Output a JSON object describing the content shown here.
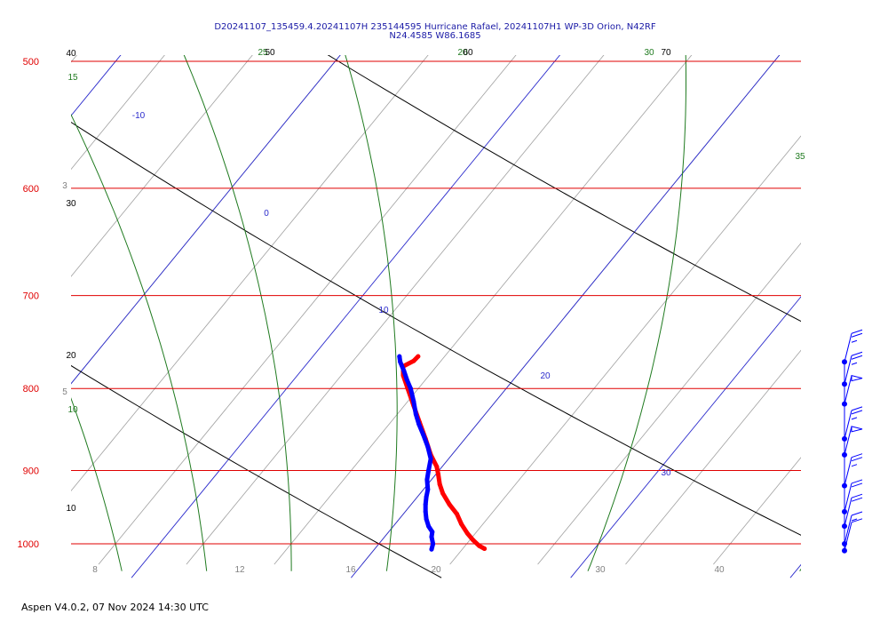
{
  "header": {
    "line1": "D20241107_135459.4.20241107H 235144595 Hurricane Rafael, 20241107H1 WP-3D Orion, N42RF",
    "line2": "N24.4585 W86.1685"
  },
  "footer": {
    "text": "Aspen V4.0.2, 07 Nov 2024  14:30 UTC"
  },
  "colors": {
    "isobar": "#e00000",
    "isotherm": "#2a2acc",
    "dry_adiabat": "#000000",
    "moist_adiabat": "#1f7a1f",
    "mixing_ratio": "#a0a0a0",
    "temperature_trace": "#ff0000",
    "dewpoint_trace": "#0000ff",
    "wind_barbs": "#0000ff"
  },
  "chart_data": {
    "type": "line",
    "title": "",
    "pressure_axis": {
      "scale": "log",
      "range_hpa": [
        1030,
        500
      ]
    },
    "temperature_axis": {
      "range_c": [
        4,
        45
      ]
    },
    "isobars": [
      {
        "label": "500",
        "p": 500
      },
      {
        "label": "600",
        "p": 600
      },
      {
        "label": "700",
        "p": 700
      },
      {
        "label": "800",
        "p": 800
      },
      {
        "label": "900",
        "p": 900
      },
      {
        "label": "1000",
        "p": 1000
      }
    ],
    "bottom_labels": [
      "8",
      "12",
      "16",
      "20",
      "30",
      "40"
    ],
    "isotherm_labels": [
      "-10",
      "0",
      "10",
      "20",
      "30"
    ],
    "dry_adiabat_labels": [
      "40",
      "30",
      "20",
      "10"
    ],
    "moist_adiabat_labels": [
      "15",
      "10",
      "25",
      "30",
      "35",
      "20"
    ],
    "top_labels": [
      "50",
      "60",
      "70"
    ],
    "mixing_ratio_labels": [
      "3",
      "5"
    ],
    "series": [
      {
        "kind": "temperature",
        "points": [
          {
            "p": 1007,
            "t": 26.5
          },
          {
            "p": 1003,
            "t": 25.8
          },
          {
            "p": 995,
            "t": 25.0
          },
          {
            "p": 985,
            "t": 24.2
          },
          {
            "p": 972,
            "t": 23.4
          },
          {
            "p": 958,
            "t": 22.8
          },
          {
            "p": 945,
            "t": 21.8
          },
          {
            "p": 930,
            "t": 20.9
          },
          {
            "p": 918,
            "t": 20.5
          },
          {
            "p": 905,
            "t": 20.3
          },
          {
            "p": 895,
            "t": 20.1
          },
          {
            "p": 880,
            "t": 19.3
          },
          {
            "p": 860,
            "t": 18.6
          },
          {
            "p": 840,
            "t": 17.8
          },
          {
            "p": 820,
            "t": 17.0
          },
          {
            "p": 800,
            "t": 16.2
          },
          {
            "p": 785,
            "t": 15.6
          },
          {
            "p": 775,
            "t": 15.6
          },
          {
            "p": 769,
            "t": 17.0
          },
          {
            "p": 764,
            "t": 17.6
          }
        ]
      },
      {
        "kind": "dewpoint",
        "points": [
          {
            "p": 1008,
            "t": 19.4
          },
          {
            "p": 1000,
            "t": 19.6
          },
          {
            "p": 990,
            "t": 19.4
          },
          {
            "p": 983,
            "t": 19.5
          },
          {
            "p": 975,
            "t": 19.0
          },
          {
            "p": 965,
            "t": 18.7
          },
          {
            "p": 955,
            "t": 18.6
          },
          {
            "p": 945,
            "t": 18.6
          },
          {
            "p": 935,
            "t": 18.7
          },
          {
            "p": 925,
            "t": 18.9
          },
          {
            "p": 912,
            "t": 18.8
          },
          {
            "p": 900,
            "t": 19.0
          },
          {
            "p": 885,
            "t": 19.3
          },
          {
            "p": 870,
            "t": 18.9
          },
          {
            "p": 855,
            "t": 18.3
          },
          {
            "p": 842,
            "t": 17.7
          },
          {
            "p": 830,
            "t": 17.3
          },
          {
            "p": 815,
            "t": 17.0
          },
          {
            "p": 800,
            "t": 16.6
          },
          {
            "p": 790,
            "t": 16.1
          },
          {
            "p": 780,
            "t": 15.7
          },
          {
            "p": 770,
            "t": 15.2
          },
          {
            "p": 764,
            "t": 15.1
          }
        ]
      }
    ],
    "wind_barbs": [
      {
        "p": 770,
        "speed_kt": 25
      },
      {
        "p": 795,
        "speed_kt": 25
      },
      {
        "p": 818,
        "speed_kt": 50
      },
      {
        "p": 860,
        "speed_kt": 25
      },
      {
        "p": 880,
        "speed_kt": 50
      },
      {
        "p": 920,
        "speed_kt": 25
      },
      {
        "p": 955,
        "speed_kt": 20
      },
      {
        "p": 975,
        "speed_kt": 20
      },
      {
        "p": 1000,
        "speed_kt": 15
      },
      {
        "p": 1010,
        "speed_kt": 10
      }
    ]
  }
}
